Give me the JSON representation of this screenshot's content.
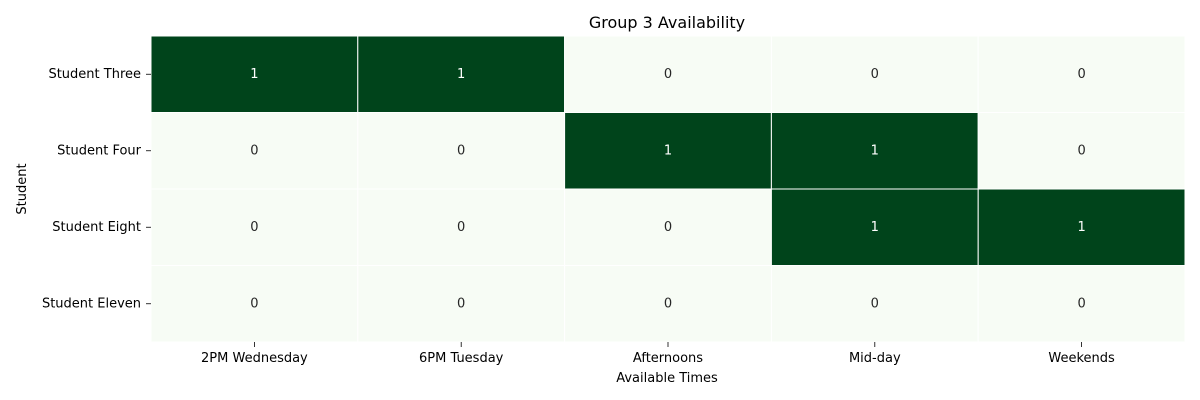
{
  "chart_data": {
    "type": "heatmap",
    "title": "Group 3 Availability",
    "xlabel": "Available Times",
    "ylabel": "Student",
    "x_categories": [
      "2PM Wednesday",
      "6PM Tuesday",
      "Afternoons",
      "Mid-day",
      "Weekends"
    ],
    "y_categories": [
      "Student Three",
      "Student Four",
      "Student Eight",
      "Student Eleven"
    ],
    "values": [
      [
        1,
        1,
        0,
        0,
        0
      ],
      [
        0,
        0,
        1,
        1,
        0
      ],
      [
        0,
        0,
        0,
        1,
        1
      ],
      [
        0,
        0,
        0,
        0,
        0
      ]
    ],
    "colormap": {
      "low": "#f7fcf5",
      "high": "#00441b"
    },
    "text_colors": {
      "on_low": "#262626",
      "on_high": "#ffffff"
    },
    "cell_border_color": "#ffffff",
    "colorbar": false
  }
}
